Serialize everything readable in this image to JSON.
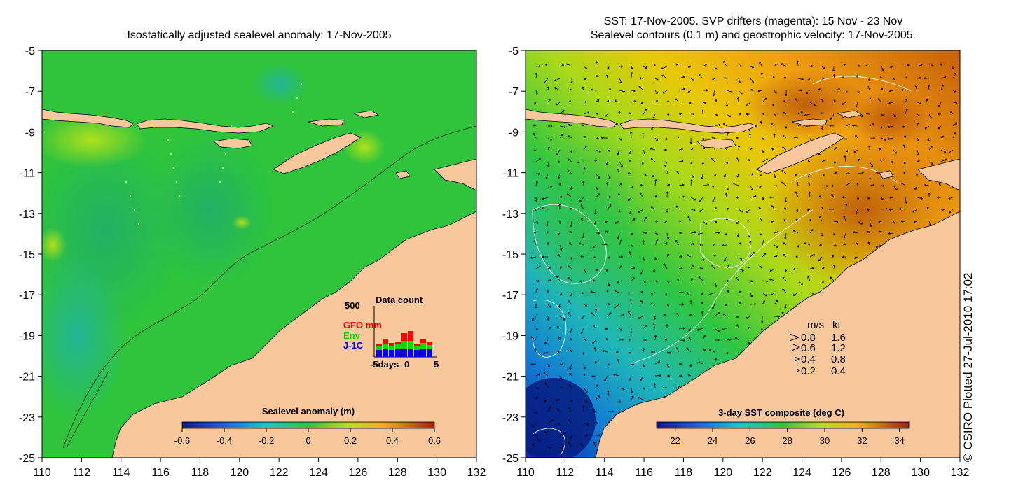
{
  "left_panel": {
    "title": "Isostatically adjusted sealevel anomaly: 17-Nov-2005",
    "colorbar": {
      "label": "Sealevel anomaly (m)",
      "ticks": [
        "-0.6",
        "-0.4",
        "-0.2",
        "0",
        "0.2",
        "0.4",
        "0.6"
      ],
      "range": [
        -0.6,
        0.6
      ]
    },
    "data_count": {
      "title": "Data count",
      "ymax_label": "500",
      "series": [
        {
          "name": "GFO mm",
          "color": "#ff0000"
        },
        {
          "name": "Env",
          "color": "#00dd00"
        },
        {
          "name": "J-1C",
          "color": "#0000ff"
        }
      ],
      "x_labels": [
        "-5days",
        "0",
        "5"
      ]
    }
  },
  "right_panel": {
    "title_line1": "SST: 17-Nov-2005. SVP drifters (magenta): 15 Nov - 23 Nov",
    "title_line2": "Sealevel contours (0.1 m) and geostrophic velocity: 17-Nov-2005.",
    "colorbar": {
      "label": "3-day SST composite (deg C)",
      "ticks": [
        "22",
        "24",
        "26",
        "28",
        "30",
        "32",
        "34"
      ],
      "range": [
        21,
        34.5
      ]
    },
    "velocity_legend": {
      "header_ms": "m/s",
      "header_kt": "kt",
      "rows": [
        {
          "ms": "0.8",
          "kt": "1.6"
        },
        {
          "ms": "0.6",
          "kt": "1.2"
        },
        {
          "ms": "0.4",
          "kt": "0.8"
        },
        {
          "ms": "0.2",
          "kt": "0.4"
        }
      ]
    }
  },
  "axes": {
    "lon_ticks": [
      "110",
      "112",
      "114",
      "116",
      "118",
      "120",
      "122",
      "124",
      "126",
      "128",
      "130",
      "132"
    ],
    "lat_ticks": [
      "-5",
      "-7",
      "-9",
      "-11",
      "-13",
      "-15",
      "-17",
      "-19",
      "-21",
      "-23",
      "-25"
    ],
    "lon_range": [
      110,
      132
    ],
    "lat_range": [
      -25,
      -5
    ]
  },
  "credit": "© CSIRO Plotted 27-Jul-2010 17:02",
  "colors": {
    "land": "#f9c79c",
    "ocean_anomaly": "#2fc43c",
    "sst_cool": "#0c3fb0",
    "sst_warm": "#d97a10"
  }
}
